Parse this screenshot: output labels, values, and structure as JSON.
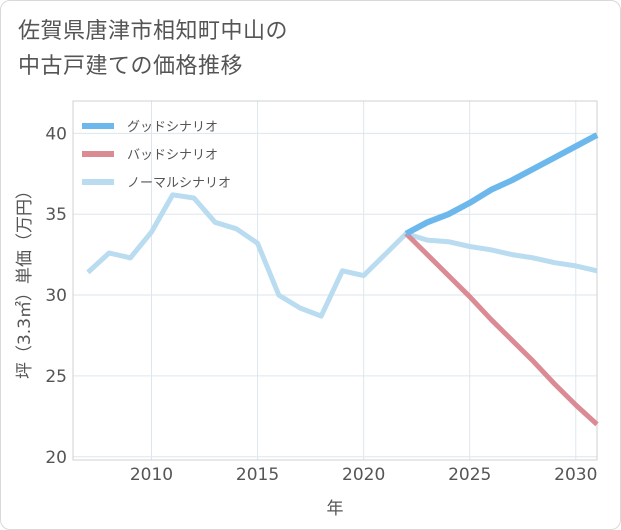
{
  "title_line1": "佐賀県唐津市相知町中山の",
  "title_line2": "中古戸建ての価格推移",
  "chart_data": {
    "type": "line",
    "xlabel": "年",
    "ylabel": "坪（3.3㎡）単価（万円）",
    "xlim": [
      2006.3,
      2031
    ],
    "ylim": [
      19.8,
      42
    ],
    "x_ticks": [
      2010,
      2015,
      2020,
      2025,
      2030
    ],
    "y_ticks": [
      20,
      25,
      30,
      35,
      40
    ],
    "grid": true,
    "legend_position": "top-left",
    "series": [
      {
        "name": "グッドシナリオ",
        "color": "#6cb8ec",
        "width": 6,
        "x": [
          2022,
          2023,
          2024,
          2025,
          2026,
          2027,
          2028,
          2029,
          2030,
          2031
        ],
        "y": [
          33.8,
          34.5,
          35.0,
          35.7,
          36.5,
          37.1,
          37.8,
          38.5,
          39.2,
          39.9
        ]
      },
      {
        "name": "バッドシナリオ",
        "color": "#da8b93",
        "width": 5,
        "x": [
          2022,
          2023,
          2024,
          2025,
          2026,
          2027,
          2028,
          2029,
          2030,
          2031
        ],
        "y": [
          33.8,
          32.5,
          31.2,
          29.9,
          28.5,
          27.2,
          25.9,
          24.5,
          23.2,
          22.0
        ]
      },
      {
        "name": "ノーマルシナリオ",
        "color": "#b9dcf0",
        "width": 5,
        "x": [
          2007,
          2008,
          2009,
          2010,
          2011,
          2012,
          2013,
          2014,
          2015,
          2016,
          2017,
          2018,
          2019,
          2020,
          2021,
          2022,
          2023,
          2024,
          2025,
          2026,
          2027,
          2028,
          2029,
          2030,
          2031
        ],
        "y": [
          31.4,
          32.6,
          32.3,
          33.9,
          36.2,
          36.0,
          34.5,
          34.1,
          33.2,
          30.0,
          29.2,
          28.7,
          31.5,
          31.2,
          32.5,
          33.8,
          33.4,
          33.3,
          33.0,
          32.8,
          32.5,
          32.3,
          32.0,
          31.8,
          31.5
        ]
      }
    ]
  }
}
